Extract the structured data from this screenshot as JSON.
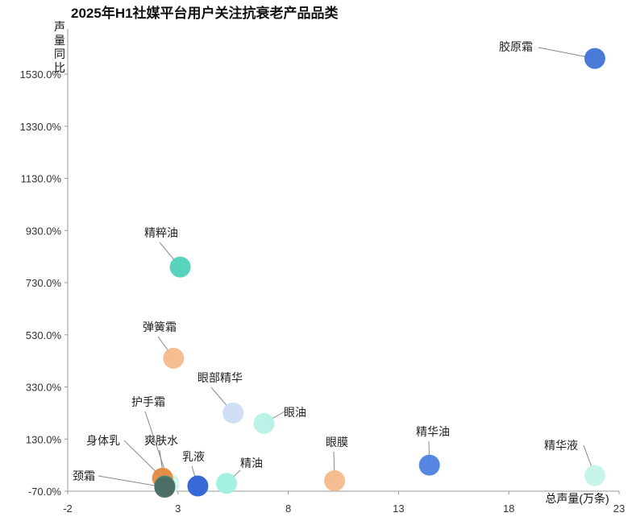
{
  "chart_data": {
    "type": "scatter",
    "title": "2025年H1社媒平台用户关注抗衰老产品品类",
    "xlabel": "总声量(万条)",
    "ylabel": "声量同比",
    "xlim": [
      -2,
      23
    ],
    "ylim": [
      -70,
      1730
    ],
    "xticks": [
      "-2",
      "3",
      "8",
      "13",
      "18",
      "23"
    ],
    "yticks": [
      "-70.0%",
      "130.0%",
      "330.0%",
      "530.0%",
      "730.0%",
      "930.0%",
      "1130.0%",
      "1330.0%",
      "1530.0%"
    ],
    "grid": false,
    "legend": "none",
    "points": [
      {
        "label": "胶原霜",
        "x": 21.9,
        "y": 1590,
        "color": "#3f73d6"
      },
      {
        "label": "精粹油",
        "x": 3.1,
        "y": 790,
        "color": "#4fd1b9"
      },
      {
        "label": "弹簧霜",
        "x": 2.8,
        "y": 440,
        "color": "#f5b98a"
      },
      {
        "label": "眼部精华",
        "x": 5.5,
        "y": 230,
        "color": "#cdddf6"
      },
      {
        "label": "眼油",
        "x": 6.9,
        "y": 190,
        "color": "#b7f1e6"
      },
      {
        "label": "护手霜",
        "x": 2.6,
        "y": -40,
        "color": "#d6f3ee"
      },
      {
        "label": "身体乳",
        "x": 2.3,
        "y": -20,
        "color": "#e5893e"
      },
      {
        "label": "爽肤水",
        "x": 2.4,
        "y": -50,
        "color": "#3d8a74"
      },
      {
        "label": "颈霜",
        "x": 2.4,
        "y": -55,
        "color": "#4e6d65"
      },
      {
        "label": "乳液",
        "x": 3.9,
        "y": -50,
        "color": "#2c62d4"
      },
      {
        "label": "精油",
        "x": 5.2,
        "y": -40,
        "color": "#9ff0e0"
      },
      {
        "label": "眼膜",
        "x": 10.1,
        "y": -30,
        "color": "#f5b98a"
      },
      {
        "label": "精华油",
        "x": 14.4,
        "y": 30,
        "color": "#4d82e2"
      },
      {
        "label": "精华液",
        "x": 21.9,
        "y": -10,
        "color": "#c4f3ea"
      }
    ]
  }
}
